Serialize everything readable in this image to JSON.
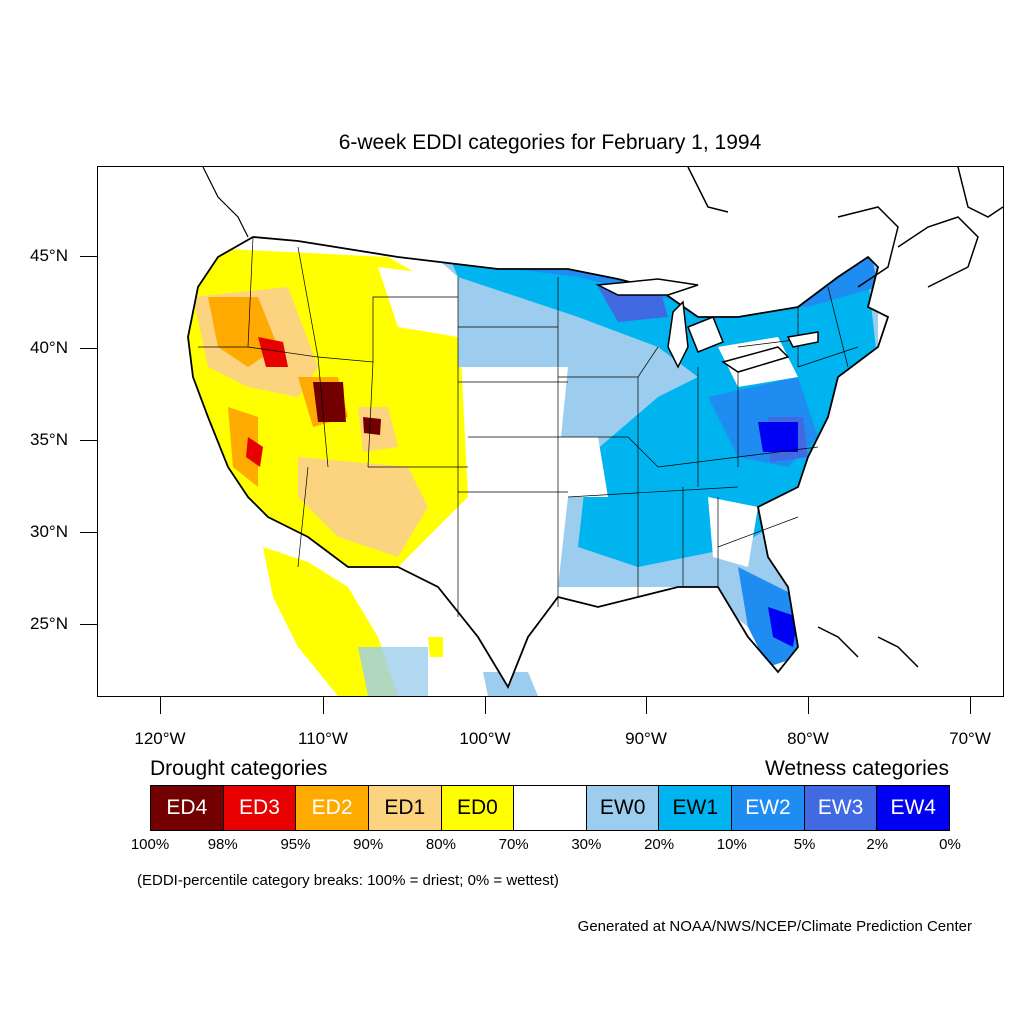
{
  "title": "6-week EDDI categories for February 1, 1994",
  "lat_labels": [
    "45°N",
    "40°N",
    "35°N",
    "30°N",
    "25°N"
  ],
  "lon_labels": [
    "120°W",
    "110°W",
    "100°W",
    "90°W",
    "80°W",
    "70°W"
  ],
  "legend": {
    "drought_title": "Drought categories",
    "wetness_title": "Wetness categories",
    "categories": [
      {
        "label": "ED4",
        "color": "#730000",
        "text_color": "#ffffff"
      },
      {
        "label": "ED3",
        "color": "#e60000",
        "text_color": "#ffffff"
      },
      {
        "label": "ED2",
        "color": "#ffaa00",
        "text_color": "#ffffff"
      },
      {
        "label": "ED1",
        "color": "#fcd37f",
        "text_color": "#000000"
      },
      {
        "label": "ED0",
        "color": "#ffff00",
        "text_color": "#000000"
      },
      {
        "label": "",
        "color": "#ffffff",
        "text_color": "#000000"
      },
      {
        "label": "EW0",
        "color": "#9dcdee",
        "text_color": "#000000"
      },
      {
        "label": "EW1",
        "color": "#00b4f0",
        "text_color": "#000000"
      },
      {
        "label": "EW2",
        "color": "#1e8cf0",
        "text_color": "#ffffff"
      },
      {
        "label": "EW3",
        "color": "#4169e1",
        "text_color": "#ffffff"
      },
      {
        "label": "EW4",
        "color": "#0000f5",
        "text_color": "#ffffff"
      }
    ],
    "breaks": [
      "100%",
      "98%",
      "95%",
      "90%",
      "80%",
      "70%",
      "30%",
      "20%",
      "10%",
      "5%",
      "2%",
      "0%"
    ]
  },
  "note": "(EDDI-percentile category breaks: 100% = driest; 0% = wettest)",
  "credit": "Generated at NOAA/NWS/NCEP/Climate Prediction Center"
}
